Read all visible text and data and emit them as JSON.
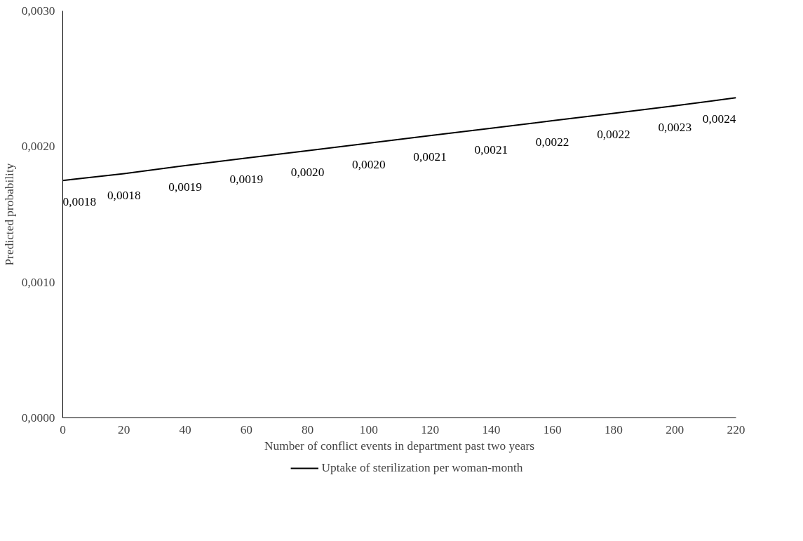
{
  "chart_data": {
    "type": "line",
    "xlabel": "Number of conflict events in department past two years",
    "ylabel": "Predicted probability",
    "x": [
      0,
      20,
      40,
      60,
      80,
      100,
      120,
      140,
      160,
      180,
      200,
      220
    ],
    "series": [
      {
        "name": "Uptake of sterilization per woman-month",
        "color": "#000000",
        "values": [
          0.00175,
          0.0018,
          0.00186,
          0.001915,
          0.00197,
          0.002025,
          0.00208,
          0.002135,
          0.00219,
          0.002245,
          0.0023,
          0.00236
        ],
        "value_labels": [
          "0,0018",
          "0,0018",
          "0,0019",
          "0,0019",
          "0,0020",
          "0,0020",
          "0,0021",
          "0,0021",
          "0,0022",
          "0,0022",
          "0,0023",
          "0,0024"
        ]
      }
    ],
    "xlim": [
      0,
      220
    ],
    "xticks": [
      0,
      20,
      40,
      60,
      80,
      100,
      120,
      140,
      160,
      180,
      200,
      220
    ],
    "ylim": [
      0,
      0.003
    ],
    "yticks": [
      {
        "value": 0,
        "label": "0,0000"
      },
      {
        "value": 0.001,
        "label": "0,0010"
      },
      {
        "value": 0.002,
        "label": "0,0020"
      },
      {
        "value": 0.003,
        "label": "0,0030"
      }
    ],
    "grid": false,
    "legend": "bottom",
    "marker": "none",
    "line_style": "solid"
  }
}
